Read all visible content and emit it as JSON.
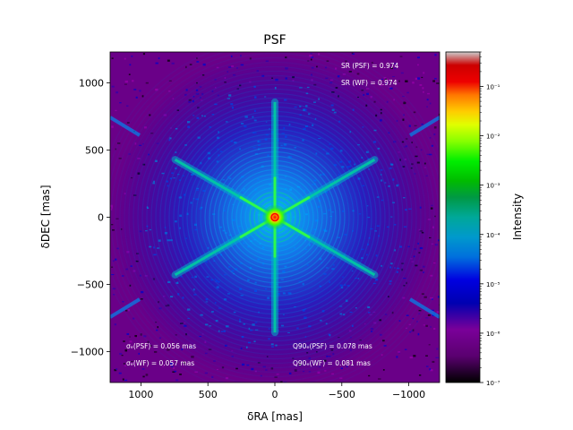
{
  "chart_data": {
    "type": "heatmap",
    "title": "PSF",
    "xlabel": "δRA [mas]",
    "ylabel": "δDEC [mas]",
    "xlim": [
      1230,
      -1230
    ],
    "ylim": [
      -1230,
      1230
    ],
    "x_ticks": [
      1000,
      500,
      0,
      -500,
      -1000
    ],
    "x_tick_labels": [
      "1000",
      "500",
      "0",
      "−500",
      "−1000"
    ],
    "y_ticks": [
      1000,
      500,
      0,
      -500,
      -1000
    ],
    "y_tick_labels": [
      "1000",
      "500",
      "0",
      "−500",
      "−1000"
    ],
    "colorbar": {
      "label": "Intensity",
      "scale": "log",
      "range": [
        1e-07,
        0.5
      ],
      "tick_values": [
        1e-07,
        1e-06,
        1e-05,
        0.0001,
        0.001,
        0.01,
        0.1
      ],
      "tick_labels": [
        "10⁻⁷",
        "10⁻⁶",
        "10⁻⁵",
        "10⁻⁴",
        "10⁻³",
        "10⁻²",
        "10⁻¹"
      ],
      "colormap": "nipy_spectral"
    },
    "pattern": {
      "spike_count": 6,
      "spike_angles_deg": [
        30,
        90,
        150
      ],
      "spike_extent_mas": 860,
      "core_position_mas": [
        0,
        0
      ]
    },
    "annotations": {
      "sr_psf": "SR (PSF) = 0.974",
      "sr_wf": "SR (WF) = 0.974",
      "sigma_psf": "σₑ(PSF) = 0.056 mas",
      "sigma_wf": "σₑ(WF) = 0.057 mas",
      "q90_psf": "Q90ₑ(PSF) = 0.078 mas",
      "q90_wf": "Q90ₑ(WF) = 0.081 mas"
    }
  }
}
